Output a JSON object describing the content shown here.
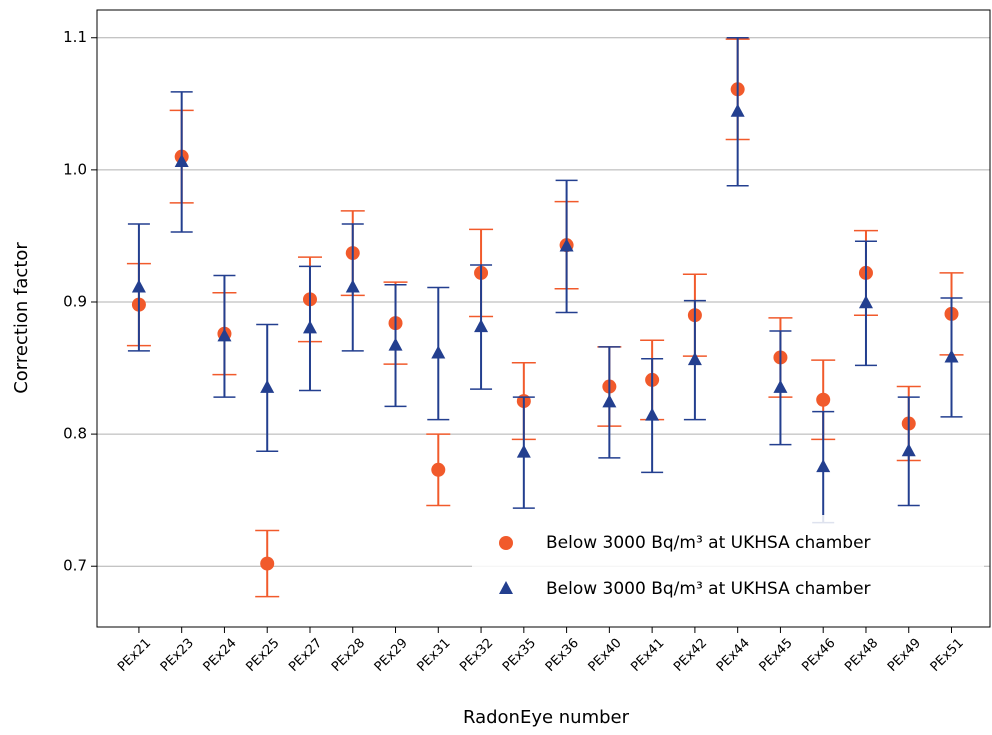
{
  "chart_data": {
    "type": "errorbar",
    "x_label": "RadonEye number",
    "y_label": "Correction factor",
    "categories": [
      "PEx21",
      "PEx23",
      "PEx24",
      "PEx25",
      "PEx27",
      "PEx28",
      "PEx29",
      "PEx31",
      "PEx32",
      "PEx35",
      "PEx36",
      "PEx40",
      "PEx41",
      "PEx42",
      "PEx44",
      "PEx45",
      "PEx46",
      "PEx48",
      "PEx49",
      "PEx51"
    ],
    "series": [
      {
        "name": "Below 3000 Bq/m³ at UKHSA chamber",
        "color": "#f15a2b",
        "marker": "circle",
        "values": [
          0.898,
          1.01,
          0.876,
          0.702,
          0.902,
          0.937,
          0.884,
          0.773,
          0.922,
          0.825,
          0.943,
          0.836,
          0.841,
          0.89,
          1.061,
          0.858,
          0.826,
          0.922,
          0.808,
          0.891
        ],
        "errors": [
          0.031,
          0.035,
          0.031,
          0.025,
          0.032,
          0.032,
          0.031,
          0.027,
          0.033,
          0.029,
          0.033,
          0.03,
          0.03,
          0.031,
          0.038,
          0.03,
          0.03,
          0.032,
          0.028,
          0.031
        ]
      },
      {
        "name": "Below 3000 Bq/m³ at UKHSA chamber",
        "color": "#233f8f",
        "marker": "triangle",
        "values": [
          0.911,
          1.006,
          0.874,
          0.835,
          0.88,
          0.911,
          0.867,
          0.861,
          0.881,
          0.786,
          0.942,
          0.824,
          0.814,
          0.856,
          1.044,
          0.835,
          0.775,
          0.899,
          0.787,
          0.858
        ],
        "errors": [
          0.048,
          0.053,
          0.046,
          0.048,
          0.047,
          0.048,
          0.046,
          0.05,
          0.047,
          0.042,
          0.05,
          0.042,
          0.043,
          0.045,
          0.056,
          0.043,
          0.042,
          0.047,
          0.041,
          0.045
        ]
      }
    ],
    "ylim": [
      0.654,
      1.121
    ],
    "yticks": [
      0.7,
      0.8,
      0.9,
      {
        "value": 1.0,
        "label": "1.0"
      },
      1.1
    ],
    "grid": true,
    "legend_position": "lower right"
  }
}
